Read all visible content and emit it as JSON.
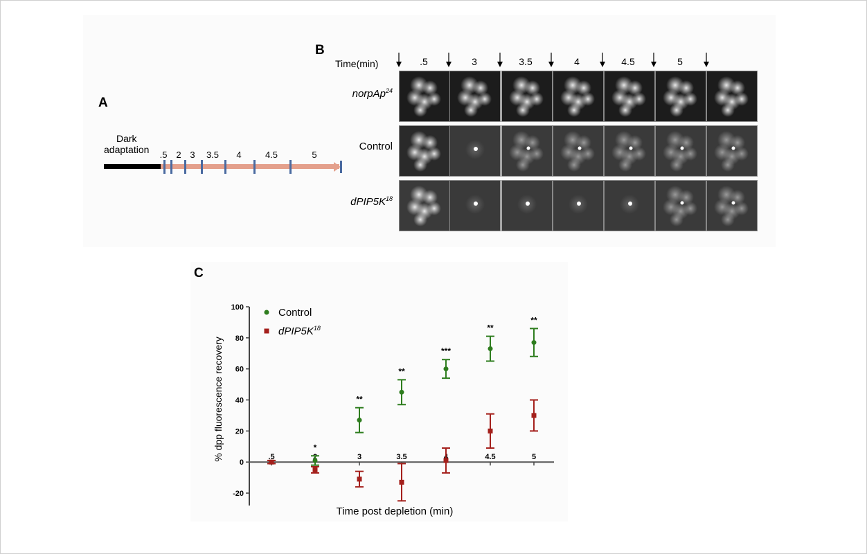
{
  "panel_a": {
    "letter": "A",
    "dark_label_1": "Dark",
    "dark_label_2": "adaptation",
    "timepoints": [
      ".5",
      "2",
      "3",
      "3.5",
      "4",
      "4.5",
      "5"
    ]
  },
  "panel_b": {
    "letter": "B",
    "time_label": "Time(min)",
    "times": [
      ".5",
      "3",
      "3.5",
      "4",
      "4.5",
      "5"
    ],
    "rows": [
      {
        "label": "norpAp",
        "sup": "24",
        "pattern": "bright"
      },
      {
        "label": "Control",
        "sup": "",
        "pattern": "control"
      },
      {
        "label": "dPIP5K",
        "sup": "18",
        "pattern": "mutant"
      }
    ]
  },
  "panel_c": {
    "letter": "C",
    "chart_data": {
      "type": "scatter",
      "xlabel": "Time post depletion (min)",
      "ylabel": "% dpp fluorescence recovery",
      "ylim": [
        -28,
        100
      ],
      "yticks": [
        100,
        80,
        60,
        40,
        20,
        0,
        -20
      ],
      "categories": [
        ".5",
        "2",
        "3",
        "3.5",
        "4",
        "4.5",
        "5"
      ],
      "significance": [
        "",
        "*",
        "**",
        "**",
        "***",
        "**",
        "**"
      ],
      "legend_position": "top-left",
      "series": [
        {
          "name": "Control",
          "sup": "",
          "color": "#2e7d1e",
          "marker": "circle",
          "values": [
            0,
            1,
            27,
            45,
            60,
            73,
            77
          ],
          "errors": [
            1,
            3,
            8,
            8,
            6,
            8,
            9
          ]
        },
        {
          "name": "dPIP5K",
          "sup": "18",
          "color": "#a4201c",
          "marker": "square",
          "values": [
            0,
            -5,
            -11,
            -13,
            1,
            20,
            30
          ],
          "errors": [
            1,
            2,
            5,
            12,
            8,
            11,
            10
          ]
        }
      ]
    }
  }
}
